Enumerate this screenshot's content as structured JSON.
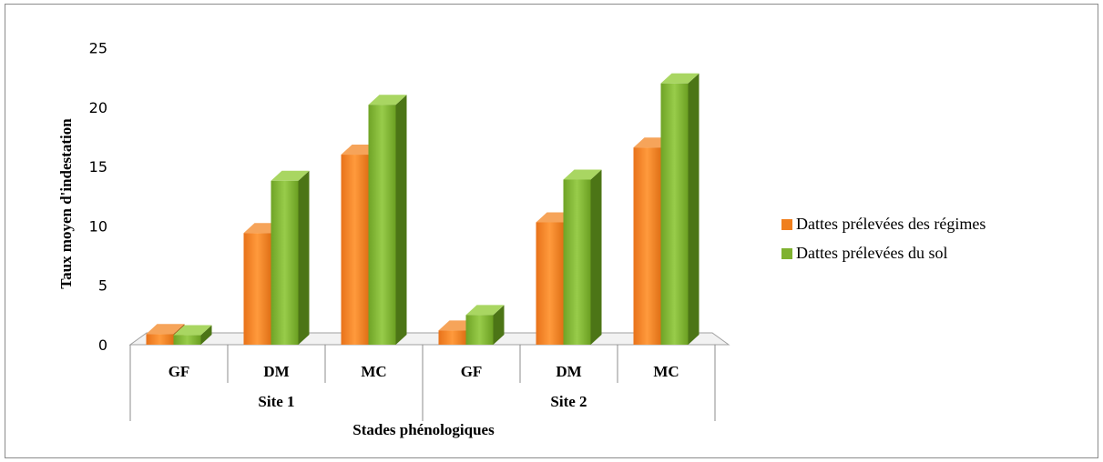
{
  "chart_data": {
    "type": "bar",
    "title": "",
    "ylabel": "Taux moyen d'indestation",
    "xlabel": "Stades phénologiques",
    "ylim": [
      0,
      25
    ],
    "yticks": [
      "0",
      "5",
      "10",
      "15",
      "20",
      "25"
    ],
    "groups": [
      "Site 1",
      "Site 2"
    ],
    "categories": [
      "GF",
      "DM",
      "MC",
      "GF",
      "DM",
      "MC"
    ],
    "series": [
      {
        "name": "Dattes prélevées des régimes",
        "color": "#f07f1d",
        "values": [
          0.9,
          9.4,
          16.0,
          1.2,
          10.3,
          16.6
        ]
      },
      {
        "name": "Dattes prélevées du sol",
        "color": "#7fb230",
        "values": [
          0.8,
          13.8,
          20.2,
          2.5,
          13.9,
          22.0
        ]
      }
    ],
    "legend_position": "right",
    "grid": false
  }
}
